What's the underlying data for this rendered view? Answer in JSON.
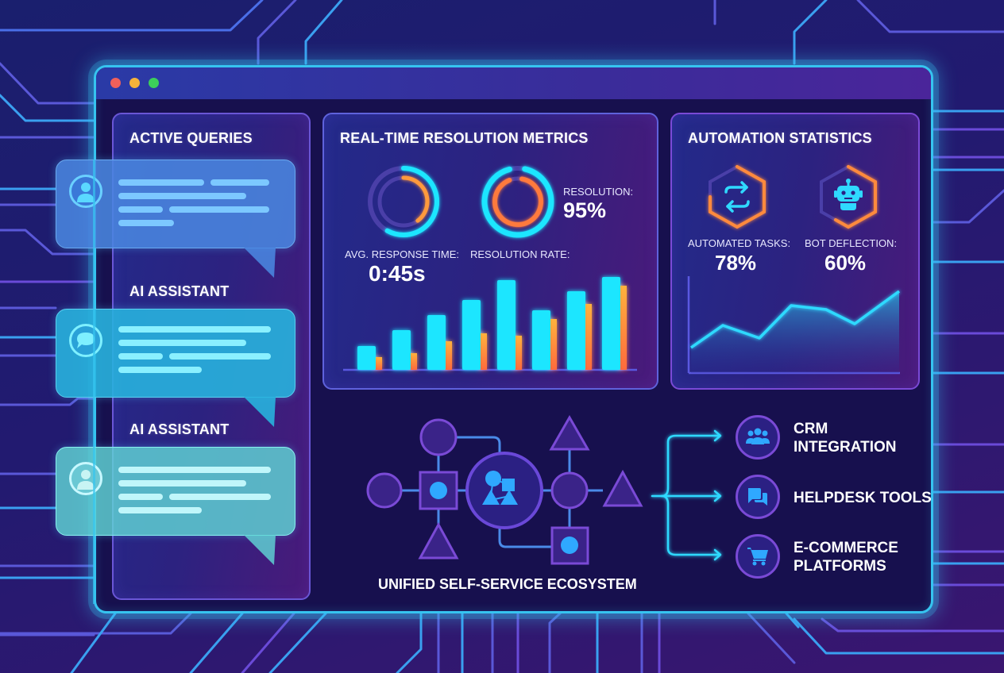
{
  "window": {
    "controls": [
      {
        "name": "close",
        "color": "#f0605a"
      },
      {
        "name": "minimize",
        "color": "#f5b33a"
      },
      {
        "name": "maximize",
        "color": "#3ccf5a"
      }
    ]
  },
  "left_panel": {
    "title": "ACTIVE QUERIES",
    "messages": [
      {
        "role": "user",
        "icon": "user-avatar-icon",
        "label": "",
        "color": "#4a86e0"
      },
      {
        "role": "assistant",
        "icon": "chat-bubble-icon",
        "label": "AI ASSISTANT",
        "color": "#2fb3df"
      },
      {
        "role": "user",
        "icon": "user-avatar-icon",
        "label": "AI ASSISTANT",
        "color": "#58c9cf"
      }
    ]
  },
  "metrics_panel": {
    "title": "REAL-TIME RESOLUTION METRICS",
    "avg_response_label": "AVG. RESPONSE TIME:",
    "avg_response_value": "0:45s",
    "resolution_rate_label": "RESOLUTION RATE:",
    "resolution_label": "RESOLUTION:",
    "resolution_value": "95%"
  },
  "automation_panel": {
    "title": "AUTOMATION STATISTICS",
    "automated_tasks_label": "AUTOMATED TASKS:",
    "automated_tasks_value": "78%",
    "bot_deflection_label": "BOT DEFLECTION:",
    "bot_deflection_value": "60%"
  },
  "ecosystem": {
    "title": "UNIFIED SELF-SERVICE ECOSYSTEM",
    "integrations": [
      {
        "line1": "CRM",
        "line2": "INTEGRATION",
        "icon": "users-group-icon"
      },
      {
        "line1": "HELPDESK TOOLS",
        "line2": "",
        "icon": "chat-bubbles-icon"
      },
      {
        "line1": "E-COMMERCE",
        "line2": "PLATFORMS",
        "icon": "shopping-cart-icon"
      }
    ]
  },
  "colors": {
    "accent_cyan": "#1ee6ff",
    "accent_orange": "#ff9a3c",
    "panel_border": "#5f62dc",
    "window_border": "#36c4f0"
  },
  "chart_data": [
    {
      "type": "donut",
      "title": "Avg. Response Time",
      "series": [
        {
          "name": "outer",
          "value": 58,
          "color": "#1ee6ff"
        },
        {
          "name": "inner",
          "value": 40,
          "color": "#ff9a3c"
        }
      ],
      "center_label": "0:45s"
    },
    {
      "type": "donut",
      "title": "Resolution Rate",
      "series": [
        {
          "name": "outer",
          "value": 95,
          "color": "#1ee6ff"
        },
        {
          "name": "inner",
          "value": 92,
          "color": "#ff8a3c"
        }
      ],
      "center_label": "95%"
    },
    {
      "type": "bar",
      "title": "Resolution Rate",
      "categories": [
        "1",
        "2",
        "3",
        "4",
        "5",
        "6",
        "7",
        "8"
      ],
      "series": [
        {
          "name": "primary",
          "color": "#1ee6ff",
          "values": [
            30,
            50,
            69,
            88,
            113,
            75,
            99,
            117
          ]
        },
        {
          "name": "secondary",
          "color": "#ff9a3c",
          "values": [
            16,
            21,
            36,
            46,
            43,
            64,
            83,
            106
          ]
        }
      ],
      "xlabel": "",
      "ylabel": "",
      "grid": false
    },
    {
      "type": "area",
      "title": "Automation Trend",
      "x": [
        1,
        2,
        3,
        4,
        5,
        6,
        7
      ],
      "values": [
        32,
        60,
        44,
        85,
        80,
        62,
        103
      ],
      "color": "#2fd9ff",
      "grid": false
    }
  ]
}
